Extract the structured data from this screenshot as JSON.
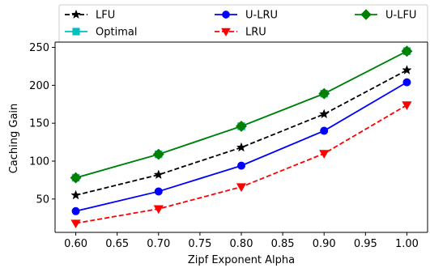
{
  "chart_data": {
    "type": "line",
    "title": "",
    "xlabel": "Zipf Exponent Alpha",
    "ylabel": "Caching Gain",
    "x": [
      0.6,
      0.7,
      0.8,
      0.9,
      1.0
    ],
    "xlim": [
      0.575,
      1.025
    ],
    "ylim": [
      6,
      257
    ],
    "x_ticks": [
      "0.60",
      "0.65",
      "0.70",
      "0.75",
      "0.80",
      "0.85",
      "0.90",
      "0.95",
      "1.00"
    ],
    "y_ticks": [
      "50",
      "100",
      "150",
      "200",
      "250"
    ],
    "grid": false,
    "legend_placement": "top, outside",
    "series": [
      {
        "name": "LFU",
        "values": [
          55,
          82,
          118,
          162,
          220
        ],
        "color": "#000000",
        "marker": "star",
        "linestyle": "dashed"
      },
      {
        "name": "U-LRU",
        "values": [
          34,
          60,
          94,
          140,
          204
        ],
        "color": "#0000ff",
        "marker": "circle",
        "linestyle": "solid"
      },
      {
        "name": "U-LFU",
        "values": [
          78,
          109,
          146,
          189,
          245
        ],
        "color": "#008000",
        "marker": "diamond",
        "linestyle": "solid"
      },
      {
        "name": "Optimal",
        "values": [
          78,
          109,
          146,
          189,
          245
        ],
        "color": "#00bfbf",
        "marker": "square",
        "linestyle": "solid"
      },
      {
        "name": "LRU",
        "values": [
          18,
          37,
          66,
          110,
          174
        ],
        "color": "#ff0000",
        "marker": "triangle-down",
        "linestyle": "dashed"
      }
    ]
  }
}
